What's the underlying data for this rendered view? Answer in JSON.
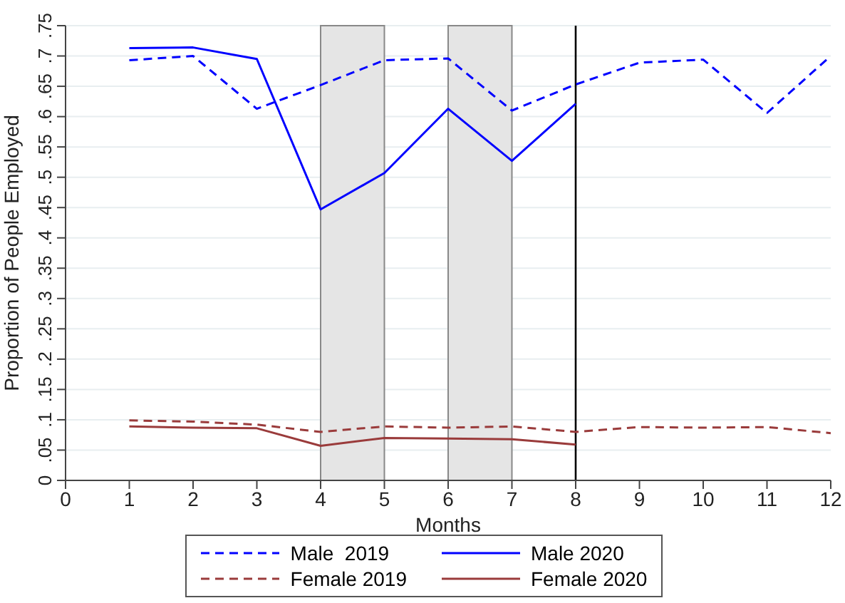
{
  "chart_data": {
    "type": "line",
    "xlabel": "Months",
    "ylabel": "Proportion of People Employed",
    "x": [
      1,
      2,
      3,
      4,
      5,
      6,
      7,
      8,
      9,
      10,
      11,
      12
    ],
    "series": [
      {
        "name": "Male  2019",
        "color": "#0000ff",
        "line_style": "dashed",
        "values": [
          0.693,
          0.7,
          0.613,
          0.652,
          0.693,
          0.696,
          0.61,
          0.653,
          0.689,
          0.694,
          0.606,
          0.7
        ]
      },
      {
        "name": "Male 2020",
        "color": "#0000ff",
        "line_style": "solid",
        "values": [
          0.713,
          0.714,
          0.695,
          0.447,
          0.507,
          0.613,
          0.527,
          0.621,
          null,
          null,
          null,
          null
        ]
      },
      {
        "name": "Female 2019",
        "color": "#9a3b3b",
        "line_style": "dashed",
        "values": [
          0.099,
          0.097,
          0.092,
          0.08,
          0.089,
          0.087,
          0.089,
          0.08,
          0.088,
          0.087,
          0.088,
          0.078
        ]
      },
      {
        "name": "Female 2020",
        "color": "#9a3b3b",
        "line_style": "solid",
        "values": [
          0.089,
          0.087,
          0.086,
          0.057,
          0.07,
          0.069,
          0.068,
          0.059,
          null,
          null,
          null,
          null
        ]
      }
    ],
    "xlim": [
      0,
      12
    ],
    "xticks": [
      0,
      1,
      2,
      3,
      4,
      5,
      6,
      7,
      8,
      9,
      10,
      11,
      12
    ],
    "ylim": [
      0,
      0.75
    ],
    "yticks": [
      0,
      {
        "value": 0.05,
        "label": ".05"
      },
      {
        "value": 0.1,
        "label": ".1"
      },
      {
        "value": 0.15,
        "label": ".15"
      },
      {
        "value": 0.2,
        "label": ".2"
      },
      {
        "value": 0.25,
        "label": ".25"
      },
      {
        "value": 0.3,
        "label": ".3"
      },
      {
        "value": 0.35,
        "label": ".35"
      },
      {
        "value": 0.4,
        "label": ".4"
      },
      {
        "value": 0.45,
        "label": ".45"
      },
      {
        "value": 0.5,
        "label": ".5"
      },
      {
        "value": 0.55,
        "label": ".55"
      },
      {
        "value": 0.6,
        "label": ".6"
      },
      {
        "value": 0.65,
        "label": ".65"
      },
      {
        "value": 0.7,
        "label": ".7"
      },
      {
        "value": 0.75,
        "label": ".75"
      }
    ],
    "bands": [
      {
        "axis": "x",
        "from": 4,
        "to": 5,
        "color": "#e5e5e5"
      },
      {
        "axis": "x",
        "from": 6,
        "to": 7,
        "color": "#e5e5e5"
      }
    ],
    "ref_lines": [
      {
        "axis": "x",
        "value": 8,
        "color": "#000000"
      }
    ],
    "grid": "y",
    "legend": "bottom",
    "marker": "none"
  }
}
